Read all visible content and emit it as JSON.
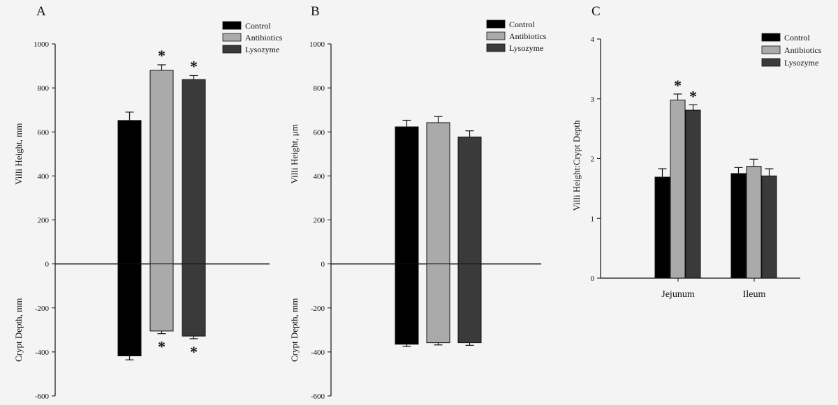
{
  "legend": [
    "Control",
    "Antibiotics",
    "Lysozyme"
  ],
  "colors": {
    "Control": "#000000",
    "Antibiotics": "#aaaaaa",
    "Lysozyme": "#3a3a3a",
    "axis": "#111111",
    "background": "#f4f4f4"
  },
  "chart_data": [
    {
      "panel": "A",
      "type": "bar",
      "categories": [
        "Control",
        "Antibiotics",
        "Lysozyme"
      ],
      "ylabel_top": "Villi Height, mm",
      "ylabel_bottom": "Crypt Depth, mm",
      "ylim": [
        -600,
        1000
      ],
      "yticks": [
        -600,
        -400,
        -200,
        0,
        200,
        400,
        600,
        800,
        1000
      ],
      "legend_position": "top-right",
      "series": [
        {
          "name": "Villi Height",
          "values": [
            652,
            880,
            838
          ],
          "errors": [
            38,
            25,
            18
          ],
          "significant": [
            false,
            true,
            true
          ]
        },
        {
          "name": "Crypt Depth",
          "values": [
            -418,
            -305,
            -328
          ],
          "errors": [
            18,
            12,
            12
          ],
          "significant": [
            false,
            true,
            true
          ]
        }
      ]
    },
    {
      "panel": "B",
      "type": "bar",
      "categories": [
        "Control",
        "Antibiotics",
        "Lysozyme"
      ],
      "ylabel_top": "Villi Height, μm",
      "ylabel_bottom": "Crypt Depth, mm",
      "ylim": [
        -600,
        1000
      ],
      "yticks": [
        -600,
        -400,
        -200,
        0,
        200,
        400,
        600,
        800,
        1000
      ],
      "legend_position": "top-right",
      "series": [
        {
          "name": "Villi Height",
          "values": [
            623,
            642,
            577
          ],
          "errors": [
            30,
            28,
            28
          ],
          "significant": [
            false,
            false,
            false
          ]
        },
        {
          "name": "Crypt Depth",
          "values": [
            -365,
            -358,
            -358
          ],
          "errors": [
            10,
            10,
            12
          ],
          "significant": [
            false,
            false,
            false
          ]
        }
      ]
    },
    {
      "panel": "C",
      "type": "bar",
      "categories": [
        "Jejunum",
        "Ileum"
      ],
      "ylabel": "Villi Height:Crypt Depth",
      "ylim": [
        0,
        4
      ],
      "yticks": [
        0,
        1,
        2,
        3,
        4
      ],
      "legend_position": "top-right",
      "series": [
        {
          "name": "Control",
          "values": [
            1.69,
            1.75
          ],
          "errors": [
            0.14,
            0.1
          ],
          "significant": [
            false,
            false
          ]
        },
        {
          "name": "Antibiotics",
          "values": [
            2.98,
            1.87
          ],
          "errors": [
            0.1,
            0.12
          ],
          "significant": [
            true,
            false
          ]
        },
        {
          "name": "Lysozyme",
          "values": [
            2.81,
            1.71
          ],
          "errors": [
            0.09,
            0.12
          ],
          "significant": [
            true,
            false
          ]
        }
      ]
    }
  ]
}
